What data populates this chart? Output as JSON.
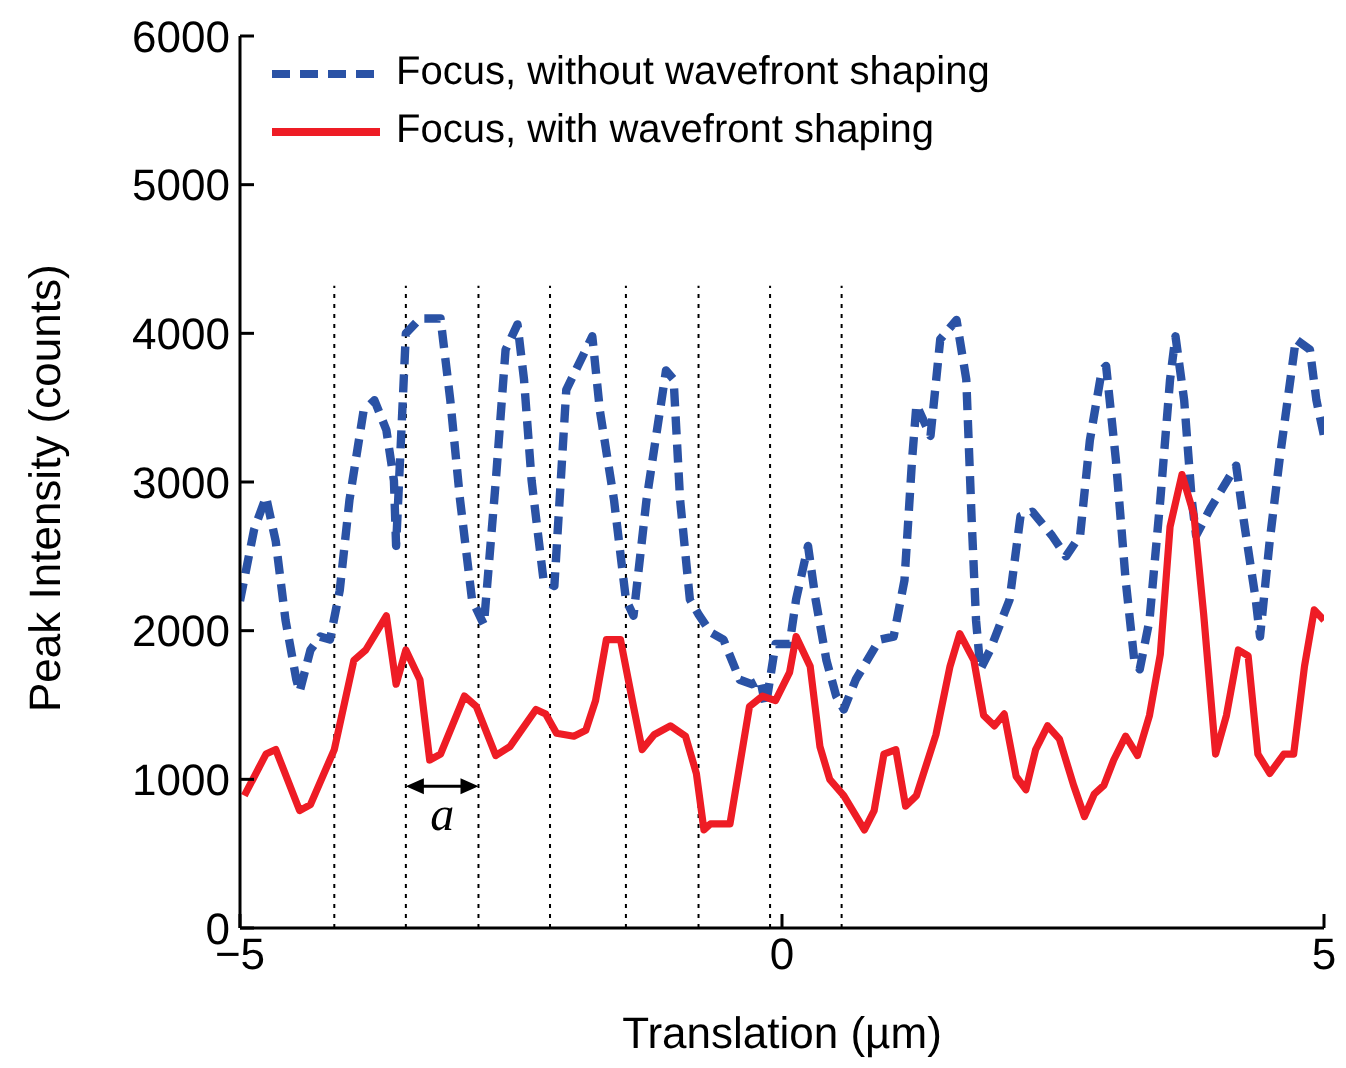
{
  "chart_data": {
    "type": "line",
    "xlabel": "Translation (µm)",
    "ylabel": "Peak Intensity (counts)",
    "xlim": [
      -5,
      5
    ],
    "xticks": [
      {
        "value": -5,
        "label": "−5"
      },
      0,
      5
    ],
    "ylim": [
      0,
      6000
    ],
    "yticks": [
      0,
      1000,
      2000,
      3000,
      4000,
      5000,
      6000
    ],
    "legend": "top left",
    "marker": "none",
    "series": [
      {
        "name": "Focus, without wavefront shaping",
        "color": "#2a52a5",
        "line_style": "dashed",
        "x": [
          -5,
          -4.87,
          -4.76,
          -4.67,
          -4.58,
          -4.48,
          -4.45,
          -4.35,
          -4.26,
          -4.17,
          -4.08,
          -3.99,
          -3.86,
          -3.76,
          -3.65,
          -3.58,
          -3.56,
          -3.47,
          -3.34,
          -3.25,
          -3.15,
          -3.06,
          -2.97,
          -2.86,
          -2.75,
          -2.64,
          -2.55,
          -2.44,
          -2.38,
          -2.31,
          -2.2,
          -2.1,
          -1.99,
          -1.75,
          -1.68,
          -1.55,
          -1.44,
          -1.37,
          -1.25,
          -1.07,
          -1.0,
          -0.94,
          -0.85,
          -0.77,
          -0.66,
          -0.54,
          -0.39,
          -0.28,
          -0.2,
          -0.15,
          -0.06,
          0.07,
          0.13,
          0.24,
          0.31,
          0.41,
          0.5,
          0.57,
          0.68,
          0.9,
          1.03,
          1.13,
          1.2,
          1.24,
          1.37,
          1.46,
          1.61,
          1.7,
          1.75,
          1.79,
          1.83,
          1.92,
          2.1,
          2.2,
          2.31,
          2.49,
          2.62,
          2.75,
          2.84,
          2.95,
          2.99,
          3.08,
          3.17,
          3.25,
          3.3,
          3.39,
          3.49,
          3.58,
          3.63,
          3.71,
          3.78,
          3.82,
          3.95,
          4.19,
          4.26,
          4.37,
          4.41,
          4.5,
          4.59,
          4.74,
          4.87,
          4.93,
          5.0
        ],
        "values": [
          2200,
          2680,
          2900,
          2600,
          2070,
          1670,
          1590,
          1870,
          1960,
          1940,
          2270,
          2880,
          3480,
          3550,
          3350,
          3010,
          2570,
          4000,
          4100,
          4100,
          4100,
          3550,
          2880,
          2210,
          2040,
          3010,
          3890,
          4060,
          3690,
          3010,
          2340,
          2300,
          3620,
          3980,
          3480,
          2880,
          2210,
          2100,
          2880,
          3750,
          3690,
          2880,
          2210,
          2110,
          1990,
          1940,
          1670,
          1640,
          1670,
          1490,
          1910,
          1910,
          2210,
          2570,
          2210,
          1800,
          1560,
          1470,
          1670,
          1940,
          1960,
          2340,
          3150,
          3520,
          3310,
          3960,
          4090,
          3690,
          2740,
          2070,
          1740,
          1870,
          2210,
          2770,
          2800,
          2640,
          2500,
          2640,
          3280,
          3750,
          3780,
          3150,
          2340,
          1800,
          1740,
          2070,
          2880,
          3690,
          3980,
          3550,
          2880,
          2640,
          2820,
          3110,
          2740,
          2210,
          1960,
          2610,
          3150,
          3960,
          3890,
          3550,
          3310
        ]
      },
      {
        "name": "Focus, with wavefront shaping",
        "color": "#ee1c25",
        "line_style": "solid",
        "x": [
          -4.96,
          -4.76,
          -4.67,
          -4.45,
          -4.35,
          -4.13,
          -3.95,
          -3.84,
          -3.65,
          -3.56,
          -3.47,
          -3.34,
          -3.25,
          -3.15,
          -2.93,
          -2.82,
          -2.64,
          -2.51,
          -2.27,
          -2.18,
          -2.08,
          -1.92,
          -1.81,
          -1.72,
          -1.62,
          -1.49,
          -1.37,
          -1.29,
          -1.18,
          -1.03,
          -0.89,
          -0.79,
          -0.72,
          -0.66,
          -0.48,
          -0.3,
          -0.18,
          -0.06,
          0.07,
          0.13,
          0.26,
          0.35,
          0.44,
          0.57,
          0.76,
          0.85,
          0.94,
          1.05,
          1.14,
          1.24,
          1.42,
          1.55,
          1.64,
          1.77,
          1.86,
          1.96,
          2.05,
          2.16,
          2.25,
          2.34,
          2.45,
          2.56,
          2.69,
          2.79,
          2.88,
          2.97,
          3.06,
          3.17,
          3.28,
          3.39,
          3.49,
          3.58,
          3.69,
          3.8,
          3.89,
          4.0,
          4.1,
          4.21,
          4.3,
          4.39,
          4.5,
          4.63,
          4.72,
          4.82,
          4.91,
          5.0
        ],
        "values": [
          890,
          1170,
          1200,
          790,
          830,
          1200,
          1800,
          1870,
          2100,
          1640,
          1870,
          1670,
          1130,
          1170,
          1560,
          1490,
          1160,
          1220,
          1470,
          1440,
          1310,
          1290,
          1330,
          1530,
          1940,
          1940,
          1490,
          1200,
          1300,
          1360,
          1290,
          1040,
          660,
          700,
          700,
          1490,
          1560,
          1530,
          1720,
          1960,
          1760,
          1220,
          1000,
          890,
          660,
          790,
          1170,
          1200,
          820,
          890,
          1300,
          1760,
          1980,
          1800,
          1430,
          1360,
          1440,
          1020,
          930,
          1200,
          1360,
          1270,
          960,
          750,
          900,
          960,
          1130,
          1290,
          1160,
          1430,
          1840,
          2700,
          3050,
          2780,
          2110,
          1170,
          1430,
          1870,
          1830,
          1170,
          1040,
          1170,
          1170,
          1760,
          2140,
          2070
        ]
      }
    ],
    "ref_lines": [
      {
        "axis": "x",
        "value": -4.13,
        "color": "#000000",
        "line_style": "dotted"
      },
      {
        "axis": "x",
        "value": -3.47,
        "color": "#000000",
        "line_style": "dotted"
      },
      {
        "axis": "x",
        "value": -2.8,
        "color": "#000000",
        "line_style": "dotted"
      },
      {
        "axis": "x",
        "value": -2.14,
        "color": "#000000",
        "line_style": "dotted"
      },
      {
        "axis": "x",
        "value": -1.44,
        "color": "#000000",
        "line_style": "dotted"
      },
      {
        "axis": "x",
        "value": -0.77,
        "color": "#000000",
        "line_style": "dotted"
      },
      {
        "axis": "x",
        "value": -0.11,
        "color": "#000000",
        "line_style": "dotted"
      },
      {
        "axis": "x",
        "value": 0.55,
        "color": "#000000",
        "line_style": "dotted"
      }
    ],
    "annotations": [
      "a"
    ]
  }
}
